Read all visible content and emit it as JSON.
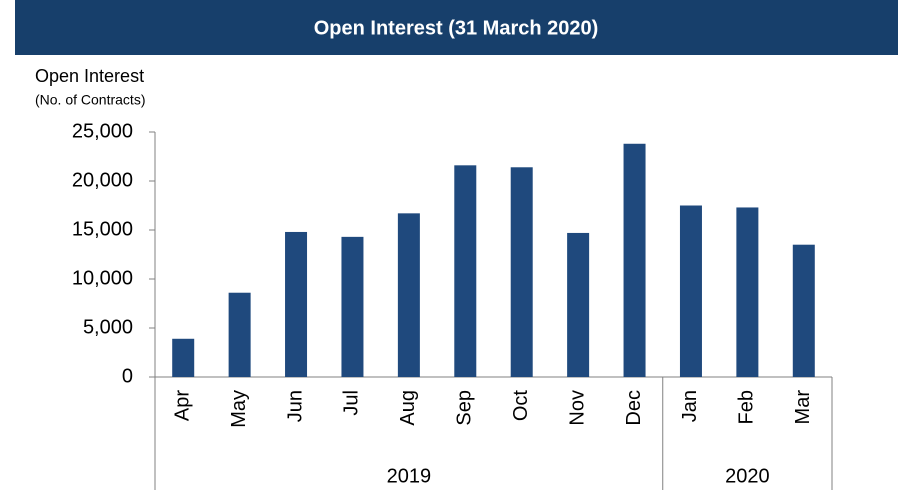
{
  "chart_data": {
    "type": "bar",
    "title": "Open Interest (31 March 2020)",
    "y_label": "Open Interest",
    "y_sublabel": "(No. of Contracts)",
    "categories": [
      "Apr",
      "May",
      "Jun",
      "Jul",
      "Aug",
      "Sep",
      "Oct",
      "Nov",
      "Dec",
      "Jan",
      "Feb",
      "Mar"
    ],
    "category_groups": [
      {
        "label": "2019",
        "size": 9
      },
      {
        "label": "2020",
        "size": 3
      }
    ],
    "values": [
      3900,
      8600,
      14800,
      14300,
      16700,
      21600,
      21400,
      14700,
      23800,
      17500,
      17300,
      13500
    ],
    "color": "#1f497d",
    "ylim": [
      0,
      25000
    ],
    "yticks": [
      0,
      {
        "value": 5000,
        "label": "5,000"
      },
      {
        "value": 10000,
        "label": "10,000"
      },
      {
        "value": 15000,
        "label": "15,000"
      },
      {
        "value": 20000,
        "label": "20,000"
      },
      {
        "value": 25000,
        "label": "25,000"
      }
    ],
    "grid": false
  }
}
